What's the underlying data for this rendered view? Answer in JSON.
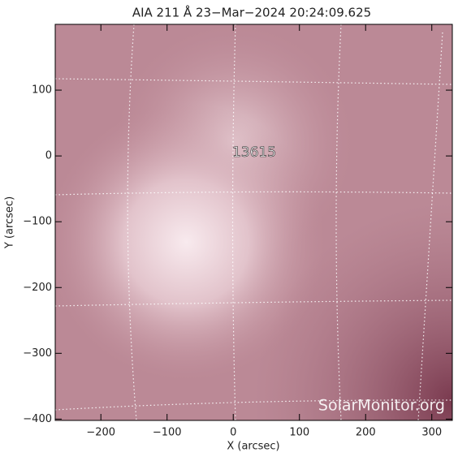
{
  "chart_data": {
    "type": "image",
    "title": "AIA 211 Å 23−Mar−2024  20:24:09.625",
    "x_label": "X (arcsec)",
    "y_label": "Y (arcsec)",
    "xlim": [
      -269,
      331
    ],
    "ylim": [
      -402,
      200
    ],
    "xticks": [
      {
        "value": -200,
        "label": "−200"
      },
      {
        "value": -100,
        "label": "−100"
      },
      0,
      100,
      200,
      300
    ],
    "yticks": [
      {
        "value": -400,
        "label": "−400"
      },
      {
        "value": -300,
        "label": "−300"
      },
      {
        "value": -200,
        "label": "−200"
      },
      {
        "value": -100,
        "label": "−100"
      },
      0,
      100
    ],
    "annotation": "13615",
    "watermark": "SolarMonitor.org"
  }
}
